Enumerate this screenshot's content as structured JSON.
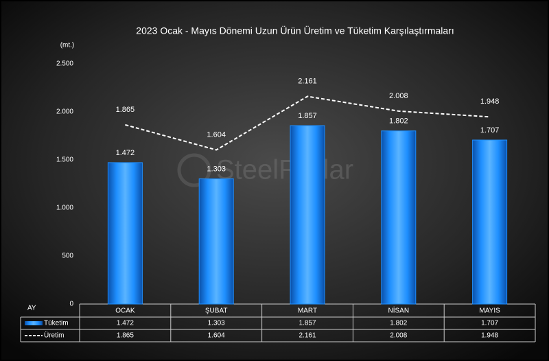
{
  "chart_data": {
    "type": "bar",
    "title": "2023 Ocak - Mayıs Dönemi Uzun Ürün Üretim ve Tüketim Karşılaştırmaları",
    "unit_label": "(mt.)",
    "table_header": "AY",
    "watermark": "SteelRadar",
    "categories": [
      "OCAK",
      "ŞUBAT",
      "MART",
      "NİSAN",
      "MAYIS"
    ],
    "series": [
      {
        "name": "Tüketim",
        "type": "bar",
        "color": "#1e8fff",
        "values": [
          1472,
          1303,
          1857,
          1802,
          1707
        ],
        "value_labels": [
          "1.472",
          "1.303",
          "1.857",
          "1.802",
          "1.707"
        ]
      },
      {
        "name": "Üretim",
        "type": "line",
        "color": "#ffffff",
        "values": [
          1865,
          1604,
          2161,
          2008,
          1948
        ],
        "value_labels": [
          "1.865",
          "1.604",
          "2.161",
          "2.008",
          "1.948"
        ]
      }
    ],
    "ylim": [
      0,
      2500
    ],
    "yticks": [
      0,
      500,
      {
        "value": 1000,
        "label": "1.000"
      },
      {
        "value": 1500,
        "label": "1.500"
      },
      {
        "value": 2000,
        "label": "2.000"
      },
      {
        "value": 2500,
        "label": "2.500"
      }
    ],
    "grid": false
  }
}
